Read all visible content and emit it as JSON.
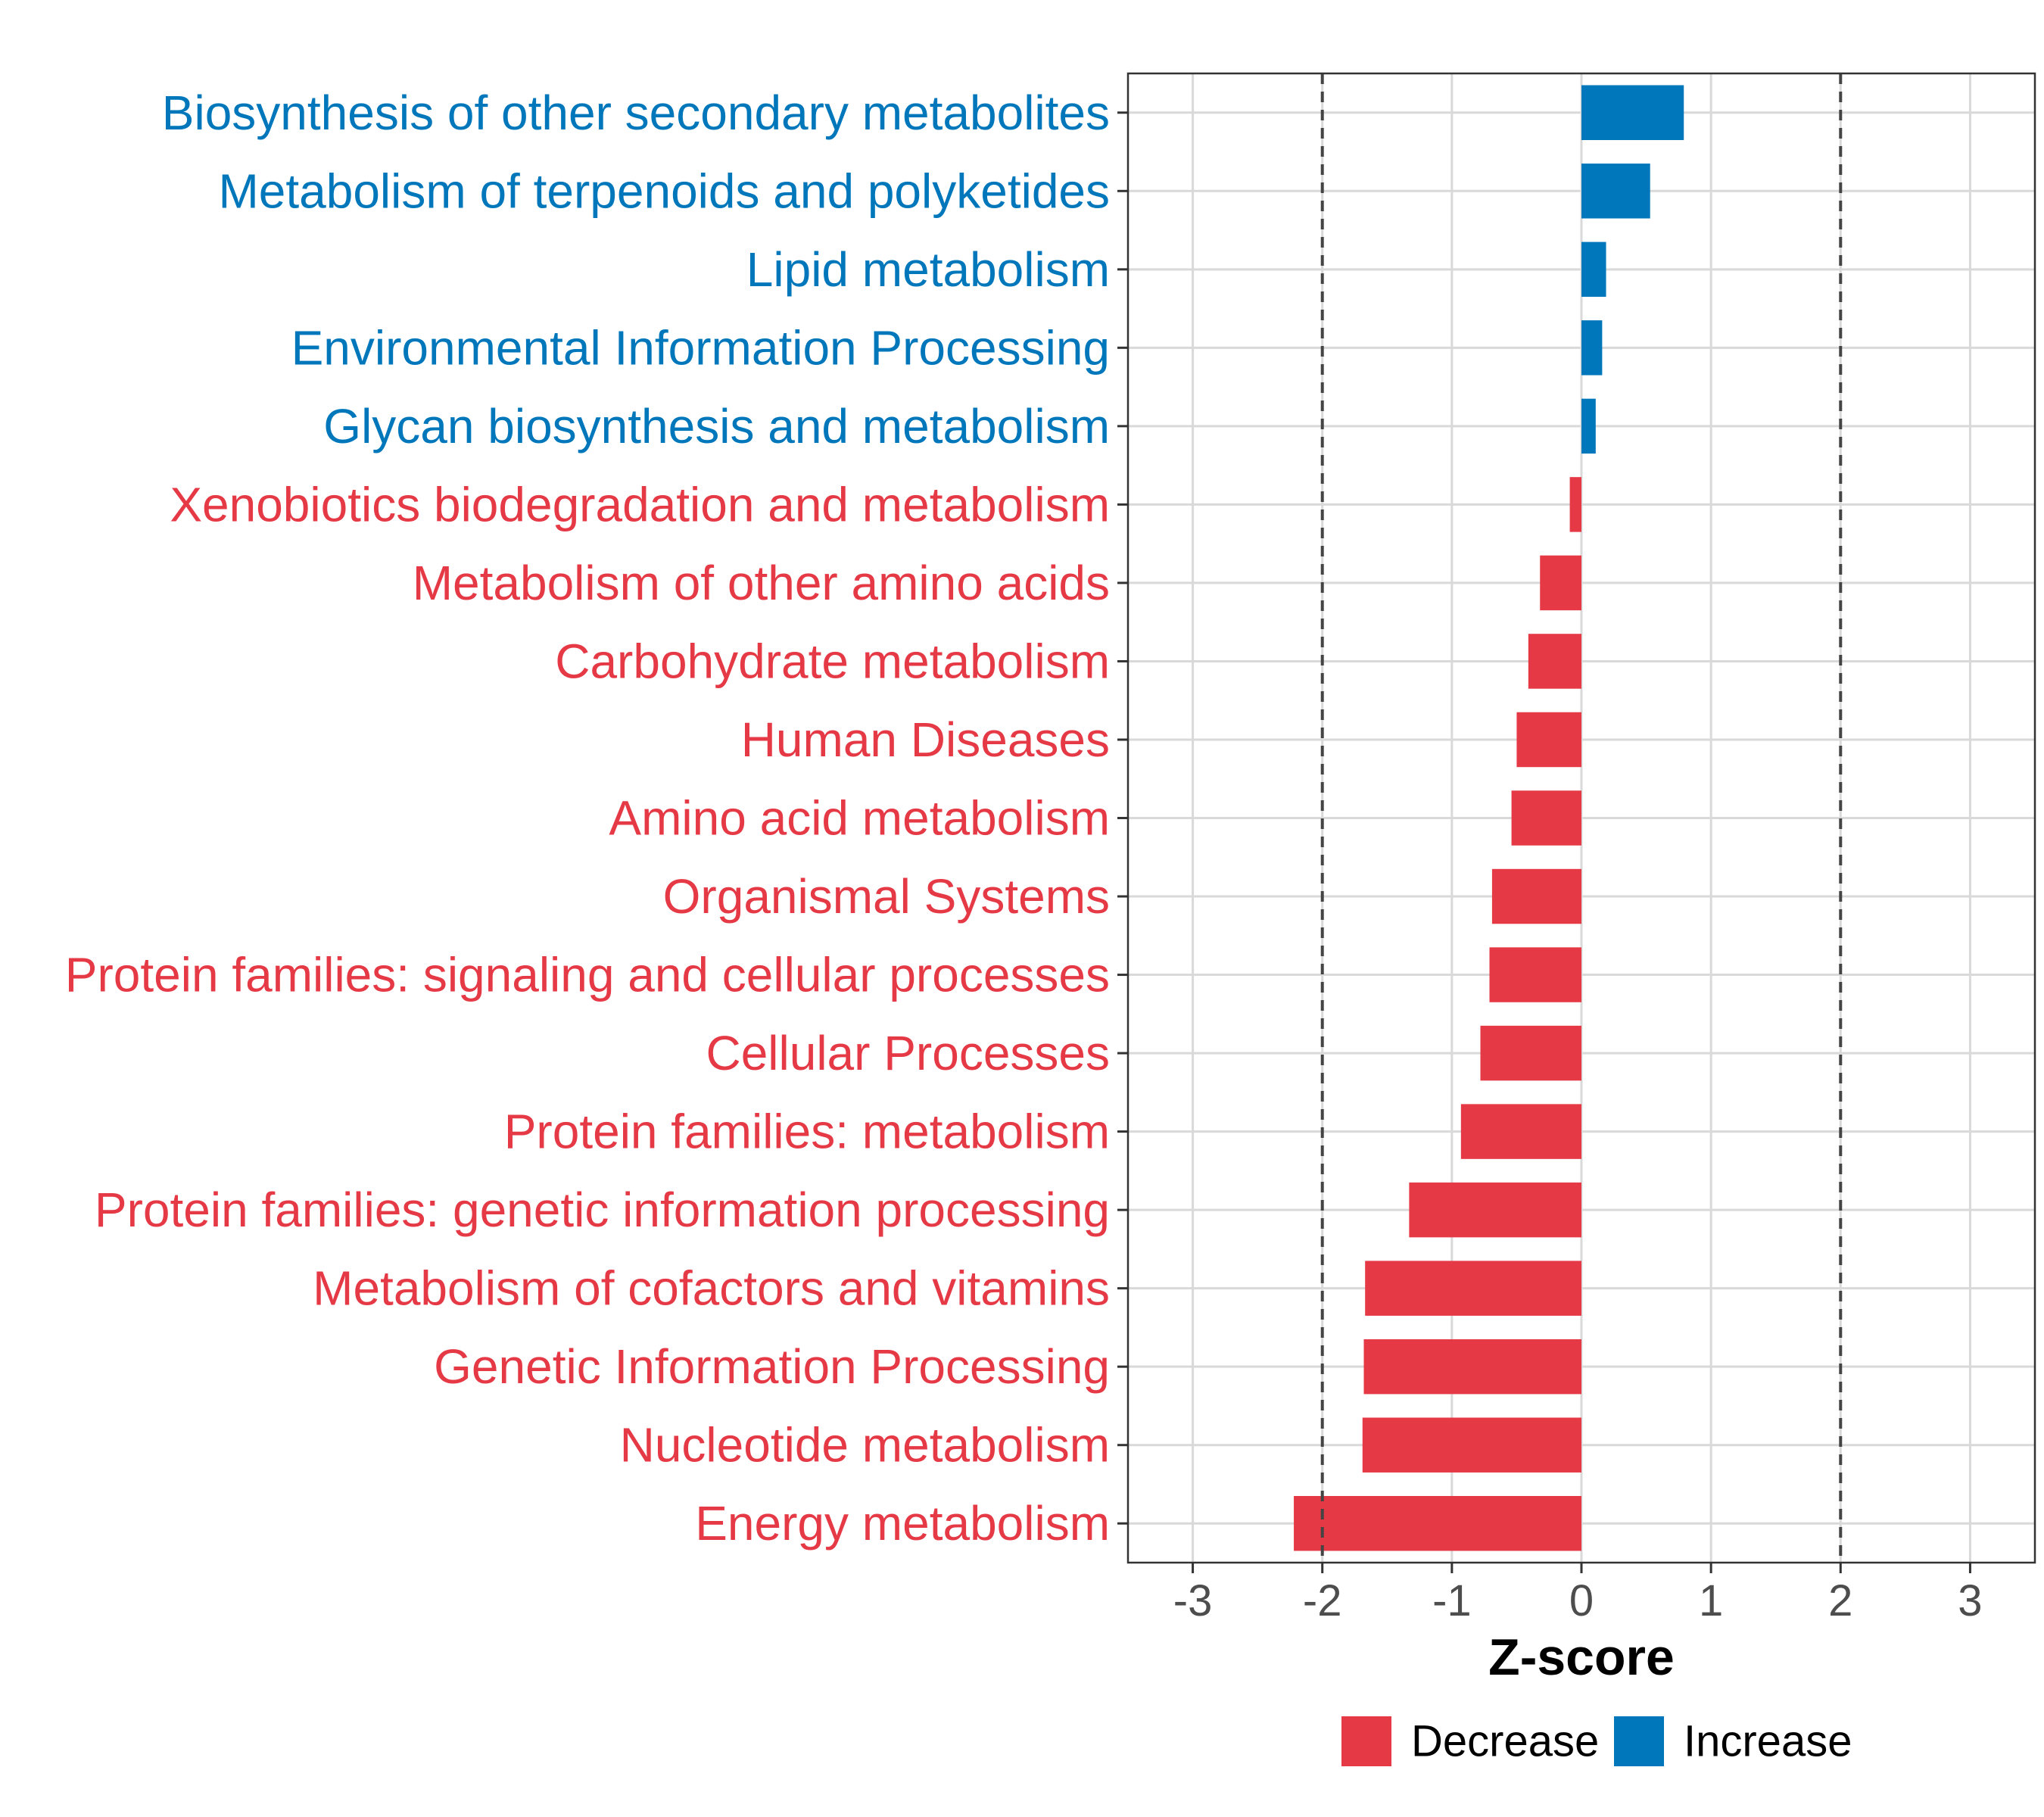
{
  "chart_data": {
    "type": "bar",
    "orientation": "horizontal",
    "xlabel": "Z-score",
    "xlim": [
      -3.5,
      3.5
    ],
    "xticks": [
      -3,
      -2,
      -1,
      0,
      1,
      2,
      3
    ],
    "reference_lines": [
      -2,
      2
    ],
    "grid": true,
    "legend_position": "bottom",
    "colors": {
      "Decrease": "#e63946",
      "Increase": "#0077bb"
    },
    "legend": [
      {
        "key": "Decrease",
        "label": "Decrease"
      },
      {
        "key": "Increase",
        "label": "Increase"
      }
    ],
    "categories": [
      "Biosynthesis of other secondary metabolites",
      "Metabolism of terpenoids and polyketides",
      "Lipid metabolism",
      "Environmental Information Processing",
      "Glycan biosynthesis and metabolism",
      "Xenobiotics biodegradation and metabolism",
      "Metabolism of other amino acids",
      "Carbohydrate metabolism",
      "Human Diseases",
      "Amino acid metabolism",
      "Organismal Systems",
      "Protein families: signaling and cellular processes",
      "Cellular Processes",
      "Protein families: metabolism",
      "Protein families: genetic information processing",
      "Metabolism of cofactors and vitamins",
      "Genetic Information Processing",
      "Nucleotide metabolism",
      "Energy metabolism"
    ],
    "values": [
      0.79,
      0.53,
      0.19,
      0.16,
      0.11,
      -0.09,
      -0.32,
      -0.41,
      -0.5,
      -0.54,
      -0.69,
      -0.71,
      -0.78,
      -0.93,
      -1.33,
      -1.67,
      -1.68,
      -1.69,
      -2.22
    ],
    "groups": [
      "Increase",
      "Increase",
      "Increase",
      "Increase",
      "Increase",
      "Decrease",
      "Decrease",
      "Decrease",
      "Decrease",
      "Decrease",
      "Decrease",
      "Decrease",
      "Decrease",
      "Decrease",
      "Decrease",
      "Decrease",
      "Decrease",
      "Decrease",
      "Decrease"
    ]
  }
}
